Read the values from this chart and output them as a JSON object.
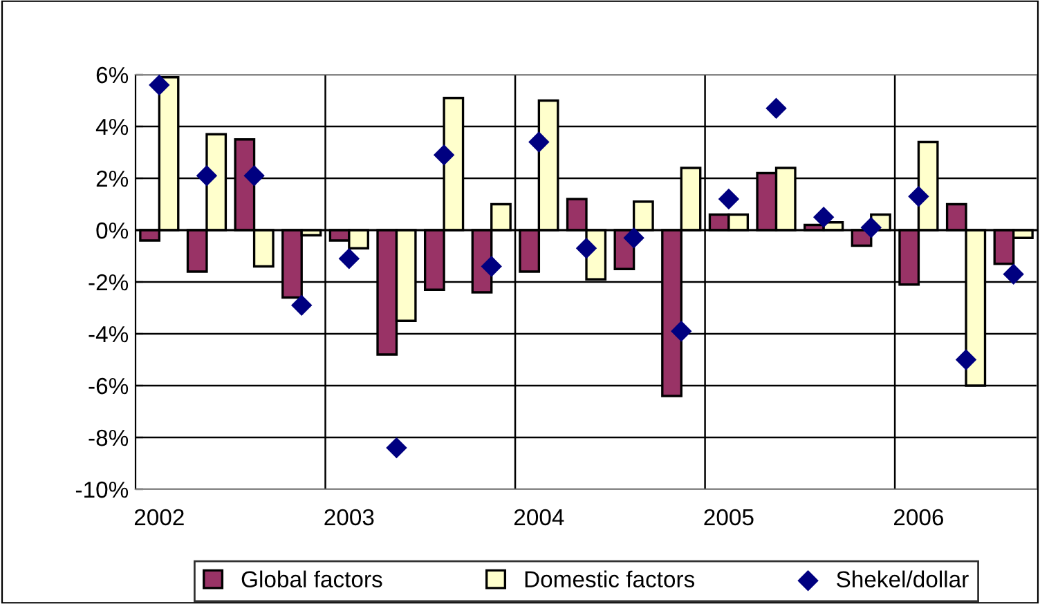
{
  "chart_data": {
    "type": "bar",
    "categories": [
      "2002",
      null,
      null,
      null,
      "2003",
      null,
      null,
      null,
      "2004",
      null,
      null,
      null,
      "2005",
      null,
      null,
      null,
      "2006",
      null,
      null
    ],
    "series": [
      {
        "name": "Global factors",
        "color": "#993366",
        "values": [
          -0.4,
          -1.6,
          3.5,
          -2.6,
          -0.4,
          -4.8,
          -2.3,
          -2.4,
          -1.6,
          1.2,
          -1.5,
          -6.4,
          0.6,
          2.2,
          0.2,
          -0.6,
          -2.1,
          1.0,
          -1.3
        ]
      },
      {
        "name": "Domestic factors",
        "color": "#ffffcc",
        "values": [
          5.9,
          3.7,
          -1.4,
          -0.2,
          -0.7,
          -3.5,
          5.1,
          1.0,
          5.0,
          -1.9,
          1.1,
          2.4,
          0.6,
          2.4,
          0.3,
          0.6,
          3.4,
          -6.0,
          -0.3
        ]
      },
      {
        "name": "Shekel/dollar",
        "type": "scatter",
        "marker": "diamond",
        "color": "#000080",
        "values": [
          5.6,
          2.1,
          2.1,
          -2.9,
          -1.1,
          -8.4,
          2.9,
          -1.4,
          3.4,
          -0.7,
          -0.3,
          -3.9,
          1.2,
          4.7,
          0.5,
          0.1,
          1.3,
          -5.0,
          -1.7
        ]
      }
    ],
    "ylim": [
      -10,
      6
    ],
    "yticks": [
      {
        "value": -10,
        "label": "-10%"
      },
      {
        "value": -8,
        "label": "-8%"
      },
      {
        "value": -6,
        "label": "-6%"
      },
      {
        "value": -4,
        "label": "-4%"
      },
      {
        "value": -2,
        "label": "-2%"
      },
      {
        "value": 0,
        "label": "0%"
      },
      {
        "value": 2,
        "label": "2%"
      },
      {
        "value": 4,
        "label": "4%"
      },
      {
        "value": 6,
        "label": "6%"
      }
    ],
    "grid": true,
    "legend": "bottom"
  }
}
